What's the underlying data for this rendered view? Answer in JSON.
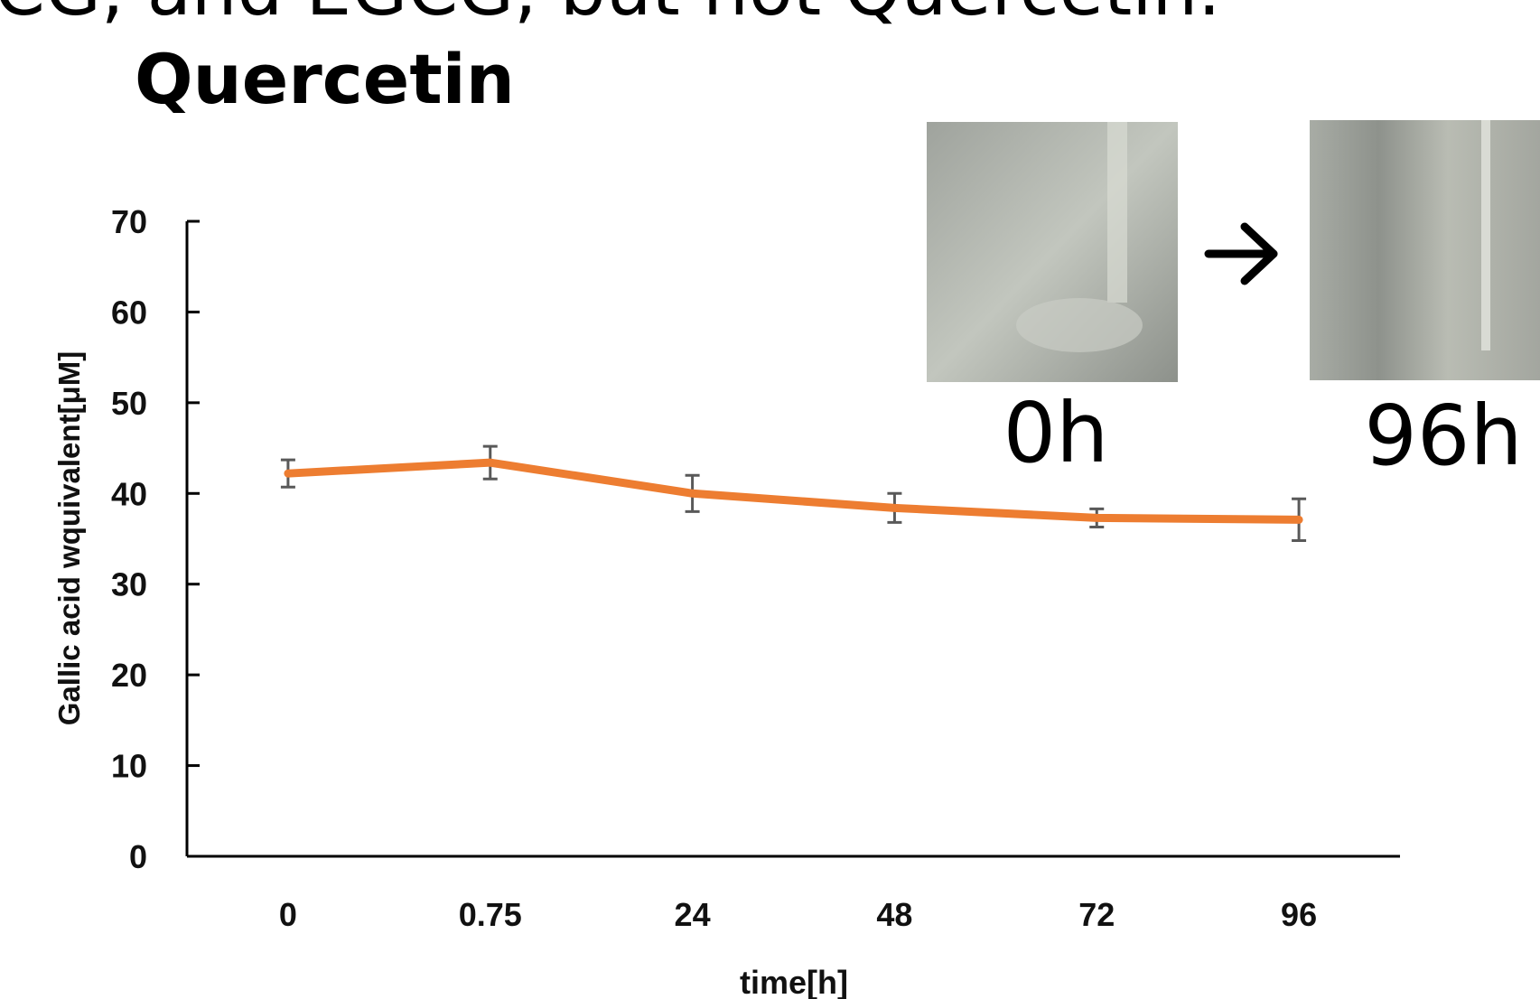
{
  "slide": {
    "heading": "CG, and EGCG, but not Quercetin.",
    "photo_labels": [
      "0h",
      "96h"
    ]
  },
  "chart_data": {
    "type": "line",
    "title": "Quercetin",
    "x_label": "time[h]",
    "y_label": "Gallic acid wquivalent[μM]",
    "categories": [
      "0",
      "0.75",
      "24",
      "48",
      "72",
      "96"
    ],
    "values": [
      42.2,
      43.4,
      40.0,
      38.4,
      37.3,
      37.1
    ],
    "errors": [
      1.5,
      1.8,
      2.0,
      1.6,
      1.0,
      2.3
    ],
    "color": "#ed7d31",
    "error_color": "#595959",
    "ylim": [
      0,
      70
    ],
    "yticks": [
      0,
      10,
      20,
      30,
      40,
      50,
      60,
      70
    ],
    "grid": false
  }
}
